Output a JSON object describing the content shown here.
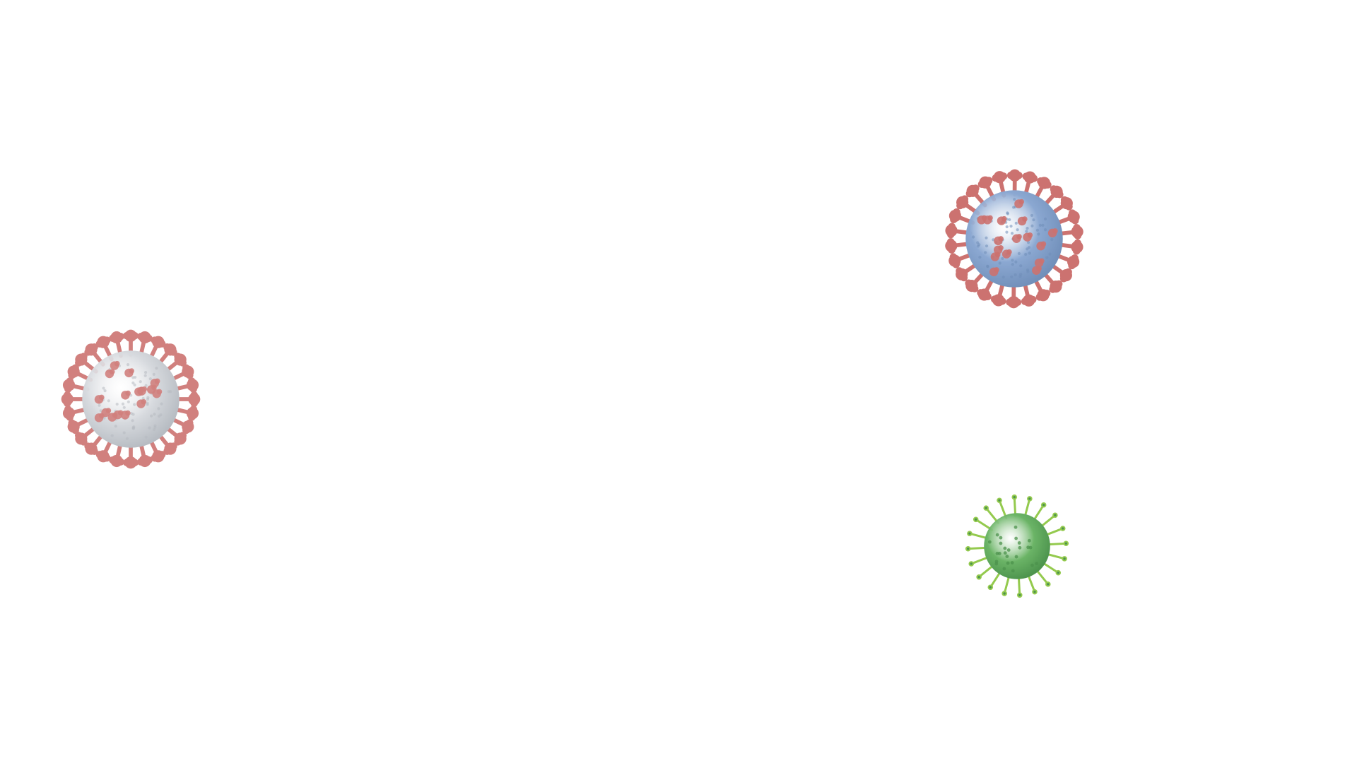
{
  "page": {
    "background": "#ffffff"
  },
  "viruses": [
    {
      "icon": "coronavirus-gray-icon",
      "body_color": "#c9cdd3",
      "texture_color": "#9aa1aa",
      "spike_color": "#c0504d",
      "spike_count": 28
    },
    {
      "icon": "coronavirus-blue-icon",
      "body_color": "#6f93c7",
      "texture_color": "#4d73a8",
      "spike_color": "#c0504d",
      "spike_count": 26
    },
    {
      "icon": "virus-green-icon",
      "body_color": "#5fae5a",
      "texture_color": "#3d8a3e",
      "spike_color": "#8cc63f",
      "spike_count": 20
    }
  ]
}
